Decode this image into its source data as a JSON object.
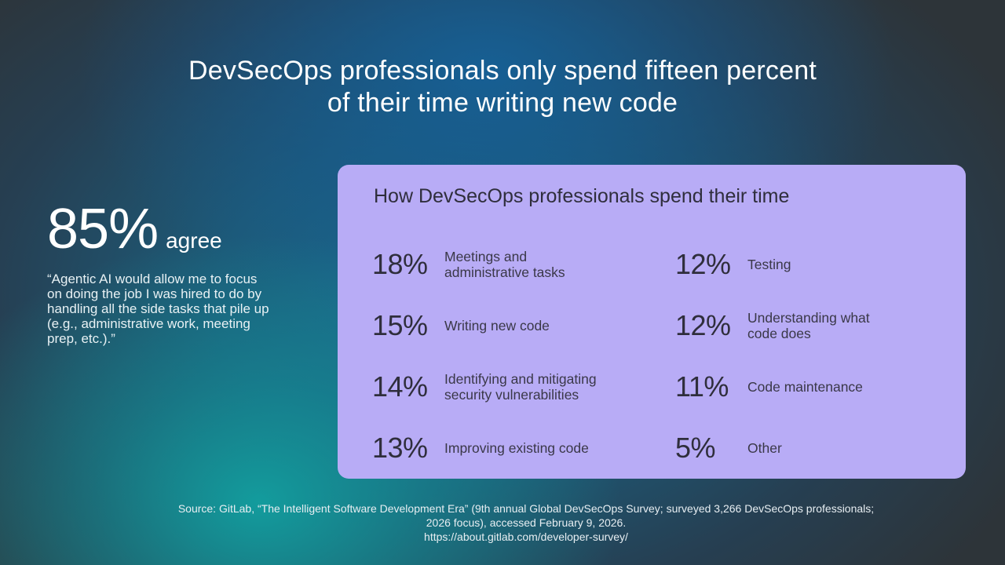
{
  "headline": {
    "line1": "DevSecOps professionals only spend fifteen percent",
    "line2": "of their time writing new code"
  },
  "highlight": {
    "value": "85%",
    "suffix": "agree",
    "quote_lines": [
      "“Agentic AI would allow me to focus",
      "on doing the job I was hired to do by",
      "handling all the side tasks that pile up",
      "(e.g., administrative work, meeting",
      "prep, etc.).”"
    ]
  },
  "card": {
    "title": "How DevSecOps professionals spend their time",
    "background": "#b8acf6",
    "left_items": [
      {
        "value": "18%",
        "label_lines": [
          "Meetings and",
          "administrative tasks"
        ]
      },
      {
        "value": "15%",
        "label_lines": [
          "Writing new code"
        ]
      },
      {
        "value": "14%",
        "label_lines": [
          "Identifying and mitigating",
          "security vulnerabilities"
        ]
      },
      {
        "value": "13%",
        "label_lines": [
          "Improving existing code"
        ]
      }
    ],
    "right_items": [
      {
        "value": "12%",
        "label_lines": [
          "Testing"
        ]
      },
      {
        "value": "12%",
        "label_lines": [
          "Understanding what",
          "code does"
        ]
      },
      {
        "value": "11%",
        "label_lines": [
          "Code maintenance"
        ]
      },
      {
        "value": "5%",
        "label_lines": [
          "Other"
        ]
      }
    ]
  },
  "source": {
    "line1": "Source: GitLab, “The Intelligent Software Development Era” (9th annual Global DevSecOps Survey; surveyed 3,266 DevSecOps professionals;",
    "line2": "2026 focus), accessed February 9, 2026.",
    "line3": "https://about.gitlab.com/developer-survey/"
  }
}
